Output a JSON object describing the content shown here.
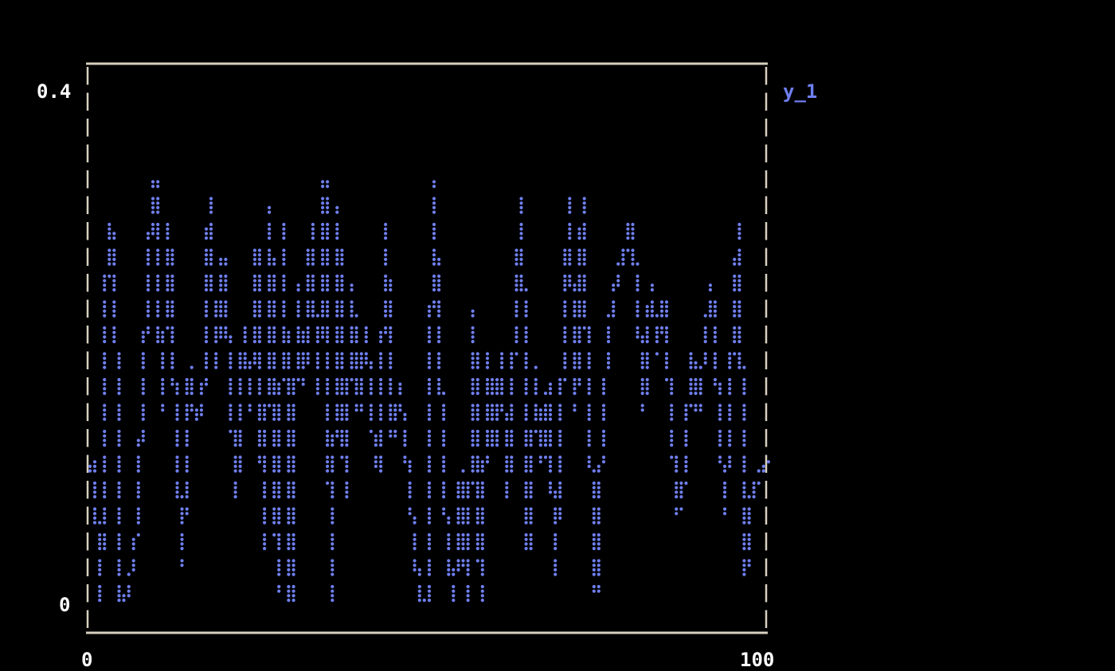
{
  "chart_data": {
    "type": "line",
    "title": "",
    "xlabel": "",
    "ylabel": "",
    "xlim": [
      0,
      100
    ],
    "ylim": [
      0,
      0.4
    ],
    "x_ticks": [
      "0",
      "100"
    ],
    "y_ticks": [
      "0",
      "0.4"
    ],
    "grid": false,
    "legend_position": "top-right",
    "colors": {
      "series": "#6f7ff0",
      "frame": "#d8d0c0",
      "ticks": "#ffffff",
      "background": "#000000"
    },
    "series": [
      {
        "name": "y_1",
        "x": [
          0,
          1,
          2,
          3,
          4,
          5,
          6,
          7,
          8,
          9,
          10,
          11,
          12,
          13,
          14,
          15,
          16,
          17,
          18,
          19,
          20,
          21,
          22,
          23,
          24,
          25,
          26,
          27,
          28,
          29,
          30,
          31,
          32,
          33,
          34,
          35,
          36,
          37,
          38,
          39,
          40,
          41,
          42,
          43,
          44,
          45,
          46,
          47,
          48,
          49,
          50,
          51,
          52,
          53,
          54,
          55,
          56,
          57,
          58,
          59,
          60,
          61,
          62,
          63,
          64,
          65,
          66,
          67,
          68,
          69,
          70,
          71,
          72,
          73,
          74,
          75,
          76,
          77,
          78,
          79,
          80,
          81,
          82,
          83,
          84,
          85,
          86,
          87,
          88,
          89,
          90,
          91,
          92,
          93,
          94,
          95,
          96,
          97,
          98,
          99,
          100
        ],
        "y": [
          0.1,
          0.11,
          0.0,
          0.3,
          0.28,
          0.0,
          0.01,
          0.04,
          0.14,
          0.27,
          0.33,
          0.15,
          0.3,
          0.15,
          0.03,
          0.18,
          0.14,
          0.15,
          0.32,
          0.18,
          0.27,
          0.18,
          0.08,
          0.22,
          0.15,
          0.28,
          0.04,
          0.31,
          0.01,
          0.3,
          0.0,
          0.25,
          0.17,
          0.3,
          0.16,
          0.33,
          0.0,
          0.31,
          0.08,
          0.25,
          0.15,
          0.22,
          0.14,
          0.1,
          0.3,
          0.13,
          0.17,
          0.12,
          0.06,
          0.0,
          0.0,
          0.33,
          0.18,
          0.05,
          0.0,
          0.1,
          0.0,
          0.23,
          0.0,
          0.2,
          0.12,
          0.2,
          0.08,
          0.22,
          0.32,
          0.04,
          0.18,
          0.11,
          0.17,
          0.02,
          0.18,
          0.32,
          0.15,
          0.32,
          0.14,
          0.01,
          0.15,
          0.22,
          0.25,
          0.27,
          0.3,
          0.25,
          0.15,
          0.25,
          0.2,
          0.24,
          0.15,
          0.07,
          0.1,
          0.2,
          0.15,
          0.2,
          0.25,
          0.16,
          0.07,
          0.2,
          0.3,
          0.02,
          0.09,
          0.1,
          0.11
        ]
      }
    ]
  }
}
